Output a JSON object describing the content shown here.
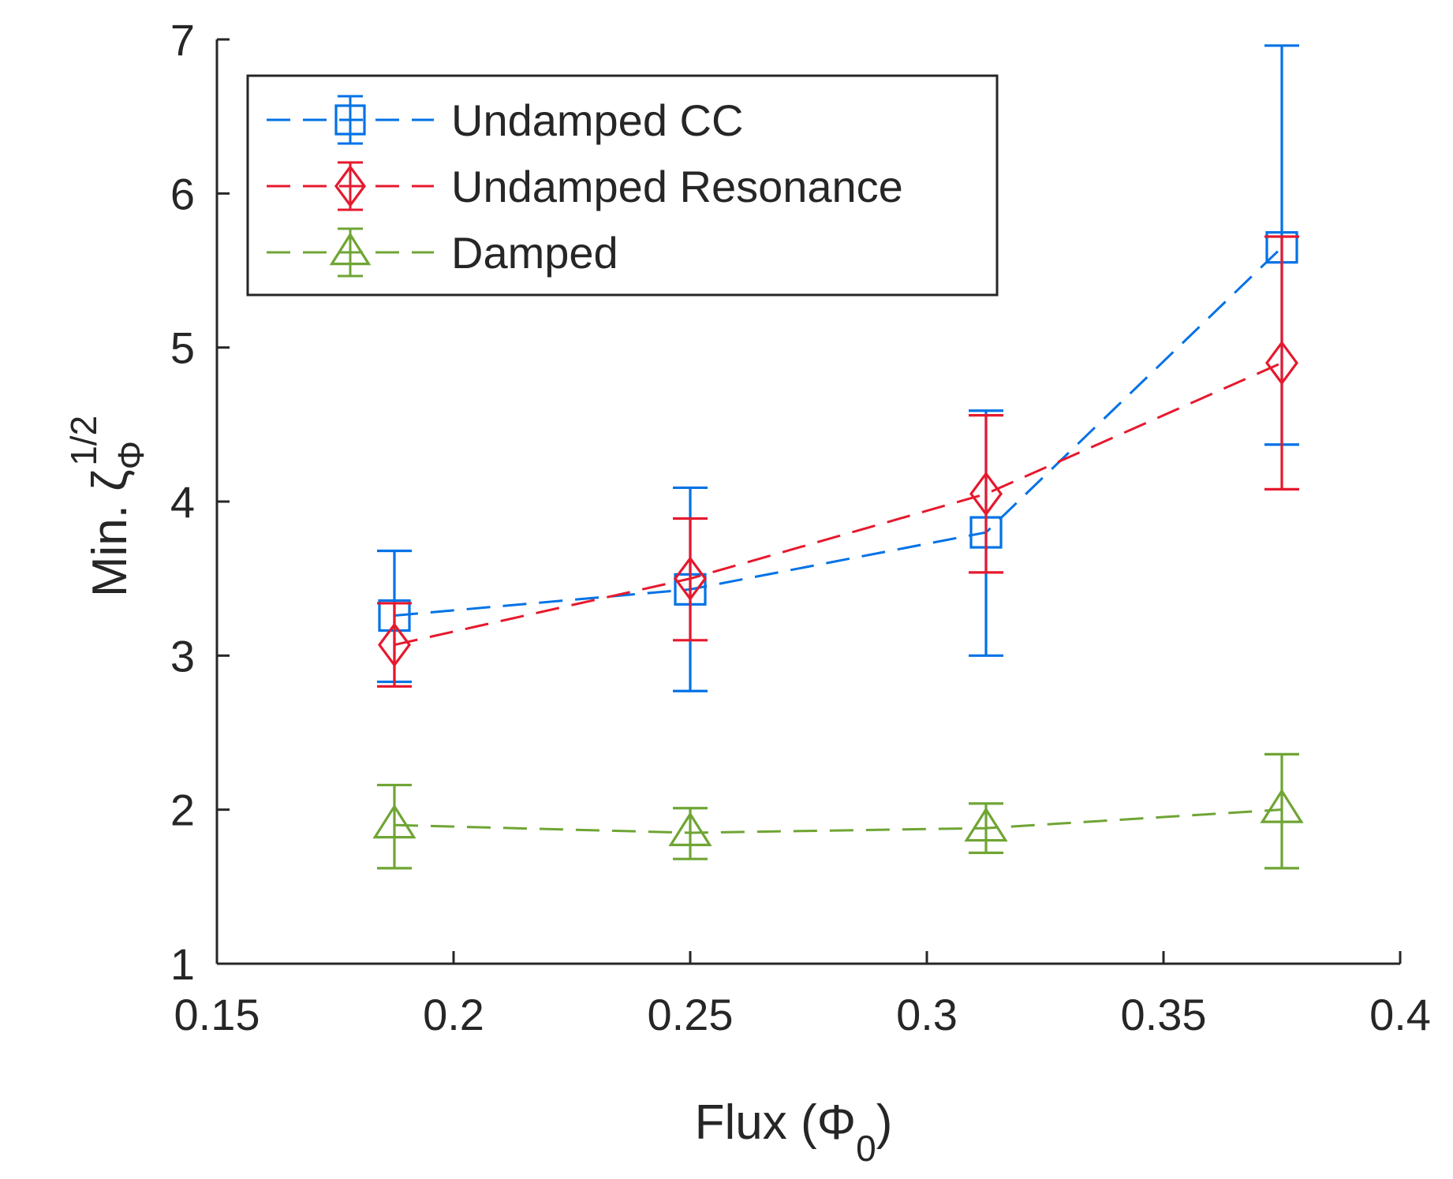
{
  "chart_data": {
    "type": "line",
    "title": "",
    "xlabel": "Flux (Φ",
    "xlabel_sub": "0",
    "xlabel_close": ")",
    "ylabel": "Min. ζ",
    "ylabel_sub": "Φ",
    "ylabel_sup": "1/2",
    "xlim": [
      0.15,
      0.4
    ],
    "ylim": [
      1,
      7
    ],
    "xticks": [
      0.15,
      0.2,
      0.25,
      0.3,
      0.35,
      0.4
    ],
    "xtick_labels": [
      "0.15",
      "0.2",
      "0.25",
      "0.3",
      "0.35",
      "0.4"
    ],
    "yticks": [
      1,
      2,
      3,
      4,
      5,
      6,
      7
    ],
    "ytick_labels": [
      "1",
      "2",
      "3",
      "4",
      "5",
      "6",
      "7"
    ],
    "grid": false,
    "legend_position": "top-left",
    "x": [
      0.1875,
      0.25,
      0.3125,
      0.375
    ],
    "series": [
      {
        "name": "Undamped CC",
        "color": "#0072e6",
        "marker": "square",
        "line": "dashed",
        "values": [
          3.26,
          3.43,
          3.8,
          5.65
        ],
        "err_low": [
          2.83,
          2.77,
          3.0,
          4.37
        ],
        "err_high": [
          3.68,
          4.09,
          4.59,
          6.96
        ]
      },
      {
        "name": "Undamped Resonance",
        "color": "#e6192d",
        "marker": "diamond",
        "line": "dashed",
        "values": [
          3.07,
          3.5,
          4.05,
          4.9
        ],
        "err_low": [
          2.8,
          3.1,
          3.54,
          4.08
        ],
        "err_high": [
          3.34,
          3.89,
          4.56,
          5.72
        ]
      },
      {
        "name": "Damped",
        "color": "#6fa534",
        "marker": "triangle",
        "line": "dashed",
        "values": [
          1.9,
          1.85,
          1.88,
          2.0
        ],
        "err_low": [
          1.62,
          1.68,
          1.72,
          1.62
        ],
        "err_high": [
          2.16,
          2.01,
          2.04,
          2.36
        ]
      }
    ]
  }
}
